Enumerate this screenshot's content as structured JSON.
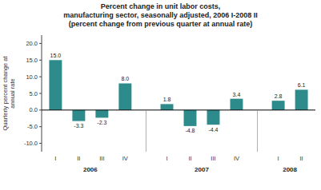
{
  "chart_data": {
    "type": "bar",
    "title": "Percent change in unit labor costs,\nmanufacturing sector, seasonally adjusted, 2006 I-2008 II\n(percent change from previous quarter at annual rate)",
    "y_label": "Quarterly percent change at\nannual rate",
    "categories": [
      "I",
      "II",
      "III",
      "IV",
      "I",
      "II",
      "III",
      "IV",
      "I",
      "II"
    ],
    "category_years": [
      "2006",
      "2006",
      "2006",
      "2006",
      "2007",
      "2007",
      "2007",
      "2007",
      "2008",
      "2008"
    ],
    "values": [
      15.0,
      -3.3,
      -2.3,
      8.0,
      1.8,
      -4.8,
      -4.4,
      3.4,
      2.8,
      6.1
    ],
    "value_labels": [
      "15.0",
      "-3.3",
      "-2.3",
      "8.0",
      "1.8",
      "-4.8",
      "-4.4",
      "3.4",
      "2.8",
      "6.1"
    ],
    "color": "#2e8b8b",
    "ylim": [
      -12.5,
      22.5
    ],
    "yticks": [
      {
        "value": -10,
        "label": "-10.0"
      },
      {
        "value": -5,
        "label": "-5.0"
      },
      {
        "value": 0,
        "label": "0.0"
      },
      {
        "value": 5,
        "label": "5.0"
      },
      {
        "value": 10,
        "label": "10.0"
      },
      {
        "value": 15,
        "label": "15.0"
      },
      {
        "value": 20,
        "label": "20.0"
      }
    ],
    "grid": false,
    "data_labels": true
  }
}
